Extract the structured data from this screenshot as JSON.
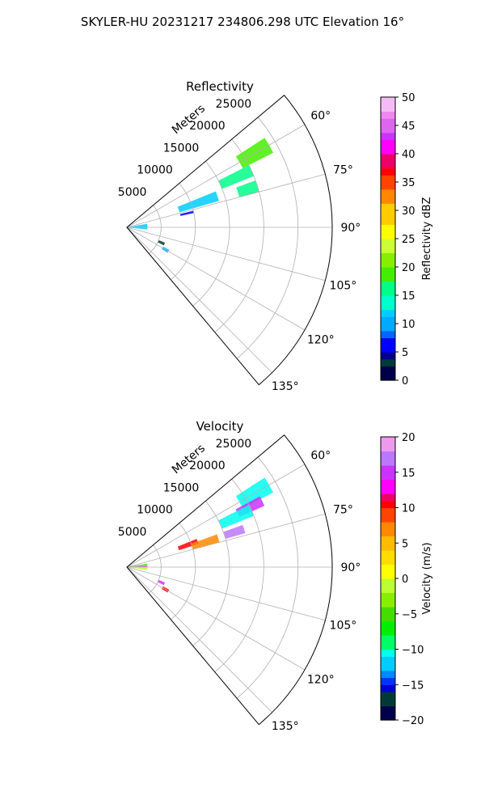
{
  "figure_title": "SKYLER-HU  20231217  234806.298 UTC Elevation 16°",
  "chart_data": [
    {
      "type": "polar-sector",
      "title": "Reflectivity",
      "range_label": "Meters",
      "range_ticks": [
        5000,
        10000,
        15000,
        20000,
        25000
      ],
      "range_tick_labels": [
        "5000",
        "10000",
        "15000",
        "20000",
        "25000"
      ],
      "range_max": 30000,
      "azimuth_range_deg": [
        50,
        140
      ],
      "azimuth_ticks": [
        60,
        75,
        90,
        105,
        120,
        135
      ],
      "azimuth_tick_labels": [
        "60°",
        "75°",
        "90°",
        "105°",
        "120°",
        "135°"
      ],
      "colorbar": {
        "label": "Reflectivity dBZ",
        "range": [
          0,
          50
        ],
        "ticks": [
          0,
          5,
          10,
          15,
          20,
          25,
          30,
          35,
          40,
          45,
          50
        ],
        "tick_labels": [
          "0",
          "5",
          "10",
          "15",
          "20",
          "25",
          "30",
          "35",
          "40",
          "45",
          "50"
        ]
      },
      "echo_regions": [
        {
          "az": [
            57,
            63
          ],
          "r": [
            19000,
            24000
          ],
          "value": 17
        },
        {
          "az": [
            63,
            68
          ],
          "r": [
            15000,
            20000
          ],
          "value": 16
        },
        {
          "az": [
            68,
            74
          ],
          "r": [
            8000,
            14000
          ],
          "value": 12
        },
        {
          "az": [
            70,
            75
          ],
          "r": [
            17000,
            20000
          ],
          "value": 16
        },
        {
          "az": [
            80,
            96
          ],
          "r": [
            0,
            3000
          ],
          "value": 11
        },
        {
          "az": [
            76,
            78
          ],
          "r": [
            8000,
            10000
          ],
          "value": 6
        },
        {
          "az": [
            112,
            116
          ],
          "r": [
            5000,
            6000
          ],
          "value": 3
        },
        {
          "az": [
            118,
            122
          ],
          "r": [
            6000,
            7000
          ],
          "value": 10
        }
      ]
    },
    {
      "type": "polar-sector",
      "title": "Velocity",
      "range_label": "Meters",
      "range_ticks": [
        5000,
        10000,
        15000,
        20000,
        25000
      ],
      "range_tick_labels": [
        "5000",
        "10000",
        "15000",
        "20000",
        "25000"
      ],
      "range_max": 30000,
      "azimuth_range_deg": [
        50,
        140
      ],
      "azimuth_ticks": [
        60,
        75,
        90,
        105,
        120,
        135
      ],
      "azimuth_tick_labels": [
        "60°",
        "75°",
        "90°",
        "105°",
        "120°",
        "135°"
      ],
      "colorbar": {
        "label": "Velocity (m/s)",
        "range": [
          -20,
          20
        ],
        "ticks": [
          -20,
          -15,
          -10,
          -5,
          0,
          5,
          10,
          15,
          20
        ],
        "tick_labels": [
          "−20",
          "−15",
          "−10",
          "−5",
          "0",
          "5",
          "10",
          "15",
          "20"
        ]
      },
      "echo_regions": [
        {
          "az": [
            57,
            63
          ],
          "r": [
            19000,
            24000
          ],
          "value": -11
        },
        {
          "az": [
            62,
            66
          ],
          "r": [
            18000,
            22000
          ],
          "value": 15
        },
        {
          "az": [
            63,
            68
          ],
          "r": [
            15000,
            20000
          ],
          "value": -11
        },
        {
          "az": [
            68,
            72
          ],
          "r": [
            8000,
            11000
          ],
          "value": 10
        },
        {
          "az": [
            70,
            75
          ],
          "r": [
            10000,
            14000
          ],
          "value": 6
        },
        {
          "az": [
            70,
            74
          ],
          "r": [
            15000,
            18000
          ],
          "value": 16
        },
        {
          "az": [
            80,
            86
          ],
          "r": [
            0,
            3000
          ],
          "value": -5
        },
        {
          "az": [
            87,
            90
          ],
          "r": [
            0,
            3000
          ],
          "value": 12
        },
        {
          "az": [
            91,
            98
          ],
          "r": [
            0,
            3000
          ],
          "value": -2
        },
        {
          "az": [
            112,
            116
          ],
          "r": [
            5000,
            6000
          ],
          "value": 15
        },
        {
          "az": [
            118,
            122
          ],
          "r": [
            6000,
            7000
          ],
          "value": 10
        }
      ]
    }
  ]
}
